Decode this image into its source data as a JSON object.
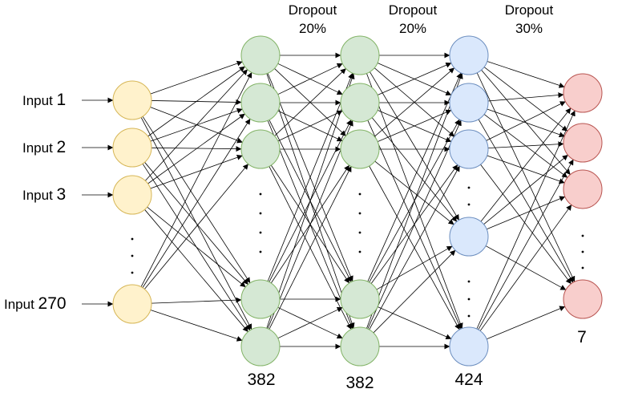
{
  "inputs": [
    {
      "prefix": "Input",
      "number": "1"
    },
    {
      "prefix": "Input",
      "number": "2"
    },
    {
      "prefix": "Input",
      "number": "3"
    },
    {
      "prefix": "Input",
      "number": "270"
    }
  ],
  "dropouts": [
    {
      "title": "Dropout",
      "rate": "20%"
    },
    {
      "title": "Dropout",
      "rate": "20%"
    },
    {
      "title": "Dropout",
      "rate": "30%"
    }
  ],
  "layer_counts": [
    "382",
    "382",
    "424",
    "7"
  ],
  "layers": [
    {
      "name": "input-layer",
      "fill": "#fff2cc",
      "stroke": "#d6b656",
      "visible_nodes": 4
    },
    {
      "name": "hidden-layer-1",
      "fill": "#d5e8d4",
      "stroke": "#82b366",
      "visible_nodes": 5
    },
    {
      "name": "hidden-layer-2",
      "fill": "#d5e8d4",
      "stroke": "#82b366",
      "visible_nodes": 5
    },
    {
      "name": "hidden-layer-3",
      "fill": "#dae8fc",
      "stroke": "#6c8ebf",
      "visible_nodes": 5
    },
    {
      "name": "output-layer",
      "fill": "#f8cecc",
      "stroke": "#b85450",
      "visible_nodes": 4
    }
  ],
  "ellipsis": "."
}
